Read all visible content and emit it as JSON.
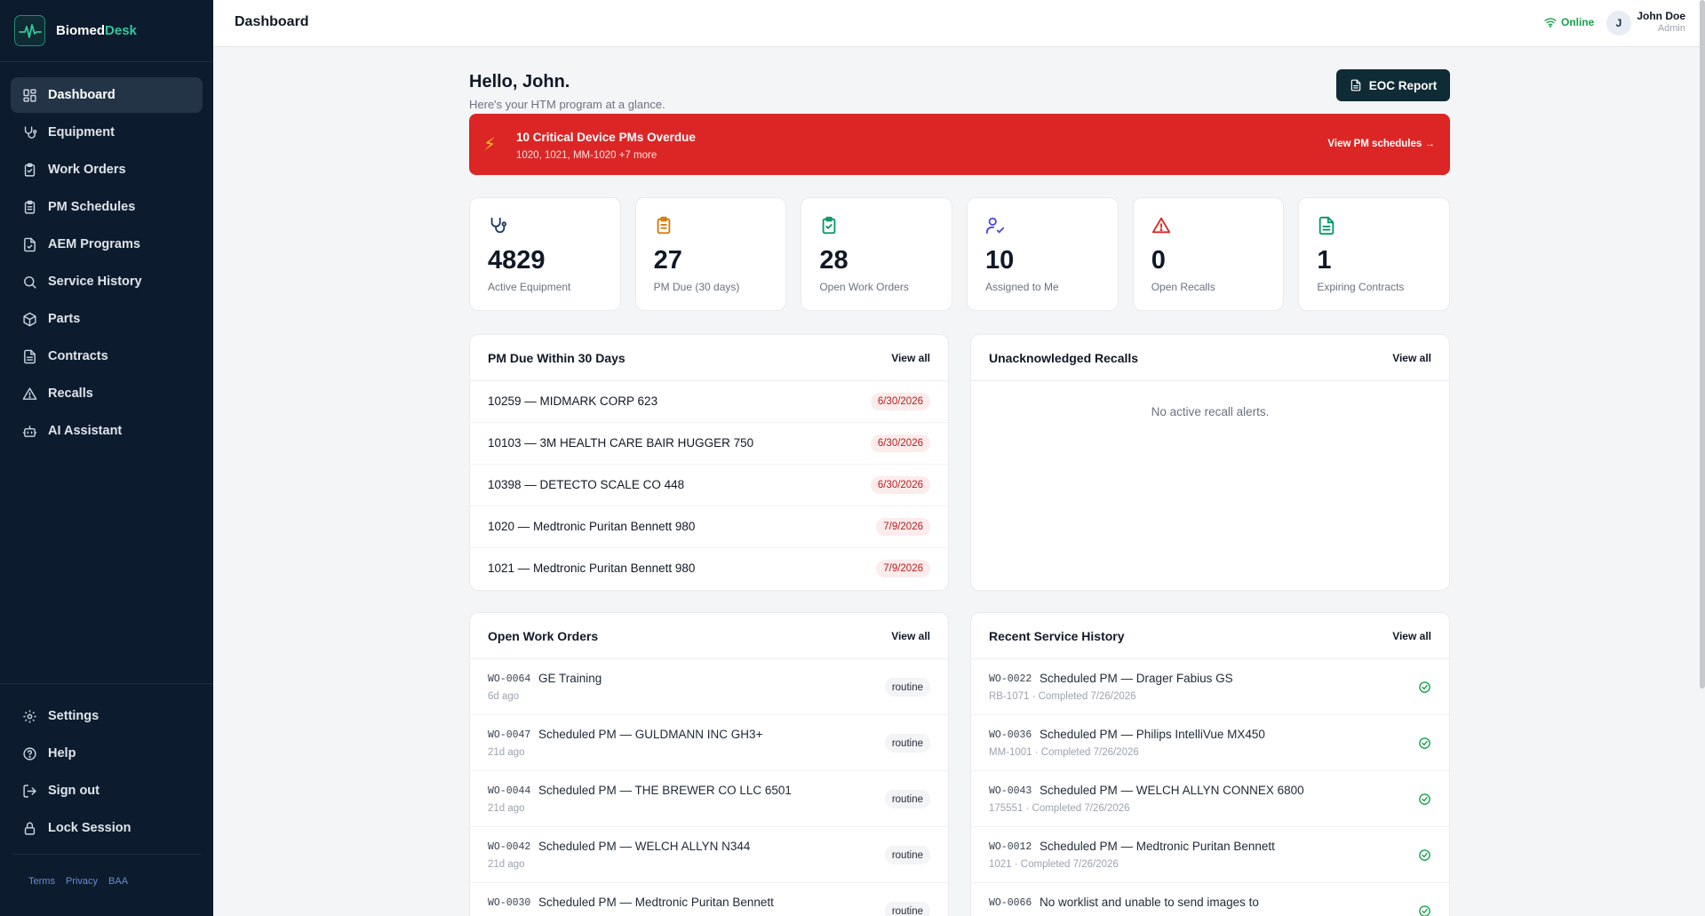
{
  "brand": {
    "name_part1": "Biomed",
    "name_part2": "Desk"
  },
  "sidebar": {
    "items": [
      {
        "label": "Dashboard",
        "icon": "dashboard-icon",
        "active": true
      },
      {
        "label": "Equipment",
        "icon": "stethoscope-icon"
      },
      {
        "label": "Work Orders",
        "icon": "clipboard-check-icon"
      },
      {
        "label": "PM Schedules",
        "icon": "clipboard-list-icon"
      },
      {
        "label": "AEM Programs",
        "icon": "file-check-icon"
      },
      {
        "label": "Service History",
        "icon": "search-icon"
      },
      {
        "label": "Parts",
        "icon": "package-icon"
      },
      {
        "label": "Contracts",
        "icon": "file-text-icon"
      },
      {
        "label": "Recalls",
        "icon": "warning-icon"
      },
      {
        "label": "AI Assistant",
        "icon": "bot-icon"
      }
    ],
    "bottom_items": [
      {
        "label": "Settings",
        "icon": "gear-icon"
      },
      {
        "label": "Help",
        "icon": "help-icon"
      },
      {
        "label": "Sign out",
        "icon": "sign-out-icon"
      },
      {
        "label": "Lock Session",
        "icon": "lock-icon"
      }
    ],
    "footer": {
      "terms": "Terms",
      "privacy": "Privacy",
      "baa": "BAA"
    }
  },
  "topbar": {
    "title": "Dashboard",
    "status": "Online",
    "avatar_initial": "J",
    "user_name": "John Doe",
    "user_role": "Admin"
  },
  "main": {
    "greeting": "Hello, John.",
    "subgreeting": "Here's your HTM program at a glance.",
    "eoc_button": "EOC Report",
    "alert": {
      "title": "10 Critical Device PMs Overdue",
      "subtitle": "1020, 1021, MM-1020 +7 more",
      "link": "View PM schedules →"
    },
    "stats": [
      {
        "value": "4829",
        "label": "Active Equipment",
        "icon": "stethoscope-icon",
        "color": "#1e3a5f"
      },
      {
        "value": "27",
        "label": "PM Due (30 days)",
        "icon": "clipboard-list-icon",
        "color": "#d97706"
      },
      {
        "value": "28",
        "label": "Open Work Orders",
        "icon": "clipboard-check-icon",
        "color": "#059669"
      },
      {
        "value": "10",
        "label": "Assigned to Me",
        "icon": "user-check-icon",
        "color": "#4f46e5"
      },
      {
        "value": "0",
        "label": "Open Recalls",
        "icon": "warning-icon",
        "color": "#dc2626"
      },
      {
        "value": "1",
        "label": "Expiring Contracts",
        "icon": "file-text-icon",
        "color": "#059669"
      }
    ],
    "pm_due": {
      "title": "PM Due Within 30 Days",
      "view_all": "View all",
      "rows": [
        {
          "name": "10259 — MIDMARK CORP 623",
          "date": "6/30/2026"
        },
        {
          "name": "10103 — 3M HEALTH CARE BAIR HUGGER 750",
          "date": "6/30/2026"
        },
        {
          "name": "10398 — DETECTO SCALE CO 448",
          "date": "6/30/2026"
        },
        {
          "name": "1020 — Medtronic Puritan Bennett 980",
          "date": "7/9/2026"
        },
        {
          "name": "1021 — Medtronic Puritan Bennett 980",
          "date": "7/9/2026"
        }
      ]
    },
    "recalls": {
      "title": "Unacknowledged Recalls",
      "view_all": "View all",
      "empty": "No active recall alerts."
    },
    "work_orders": {
      "title": "Open Work Orders",
      "view_all": "View all",
      "rows": [
        {
          "id": "WO-0064",
          "title": "GE Training",
          "sub": "6d ago",
          "badge": "routine"
        },
        {
          "id": "WO-0047",
          "title": "Scheduled PM — GULDMANN INC GH3+",
          "sub": "21d ago",
          "badge": "routine"
        },
        {
          "id": "WO-0044",
          "title": "Scheduled PM — THE BREWER CO LLC 6501",
          "sub": "21d ago",
          "badge": "routine"
        },
        {
          "id": "WO-0042",
          "title": "Scheduled PM — WELCH ALLYN N344",
          "sub": "21d ago",
          "badge": "routine"
        },
        {
          "id": "WO-0030",
          "title": "Scheduled PM — Medtronic Puritan Bennett",
          "sub": "",
          "badge": "routine"
        }
      ]
    },
    "service_history": {
      "title": "Recent Service History",
      "view_all": "View all",
      "rows": [
        {
          "id": "WO-0022",
          "title": "Scheduled PM — Drager Fabius GS",
          "sub": "RB-1071 · Completed 7/26/2026"
        },
        {
          "id": "WO-0036",
          "title": "Scheduled PM — Philips IntelliVue MX450",
          "sub": "MM-1001 · Completed 7/26/2026"
        },
        {
          "id": "WO-0043",
          "title": "Scheduled PM — WELCH ALLYN CONNEX 6800",
          "sub": "175551 · Completed 7/26/2026"
        },
        {
          "id": "WO-0012",
          "title": "Scheduled PM — Medtronic Puritan Bennett",
          "sub": "1021 · Completed 7/26/2026"
        },
        {
          "id": "WO-0066",
          "title": "No worklist and unable to send images to",
          "sub": ""
        }
      ]
    }
  }
}
